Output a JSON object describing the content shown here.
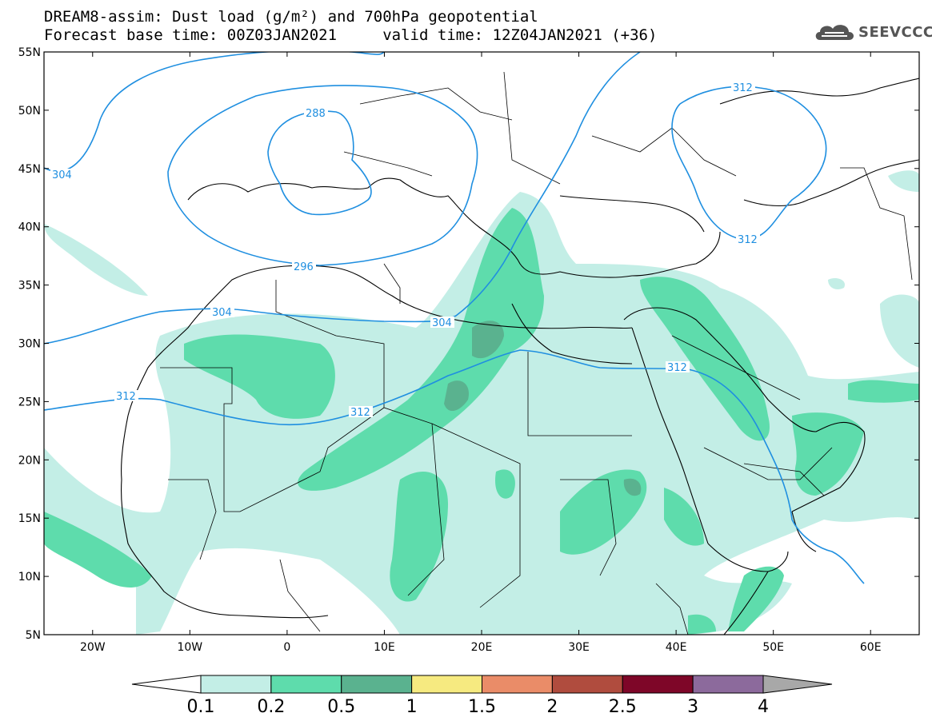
{
  "title": {
    "line1": "DREAM8-assim: Dust load (g/m²) and 700hPa geopotential",
    "line2": "Forecast base time: 00Z03JAN2021     valid time: 12Z04JAN2021 (+36)"
  },
  "logo": {
    "text": "SEEVCCC",
    "icon": "cloud-icon"
  },
  "map": {
    "lon_range": [
      -25,
      65
    ],
    "lat_range": [
      5,
      55
    ],
    "lat_ticks": [
      "55N",
      "50N",
      "45N",
      "40N",
      "35N",
      "30N",
      "25N",
      "20N",
      "15N",
      "10N",
      "5N"
    ],
    "lon_ticks": [
      "20W",
      "10W",
      "0",
      "10E",
      "20E",
      "30E",
      "40E",
      "50E",
      "60E"
    ],
    "geopotential_labels": [
      "288",
      "296",
      "304",
      "304",
      "304",
      "312",
      "312",
      "312",
      "312",
      "304",
      "312"
    ]
  },
  "colorbar": {
    "labels": [
      "0.1",
      "0.2",
      "0.5",
      "1",
      "1.5",
      "2",
      "2.5",
      "3",
      "4"
    ],
    "colors": [
      "#ffffff",
      "#c3eee6",
      "#5edcac",
      "#5ab28f",
      "#f6ea80",
      "#ea8c68",
      "#b04c3e",
      "#7e0628",
      "#8c6a9c",
      "#a8a8a8"
    ]
  }
}
